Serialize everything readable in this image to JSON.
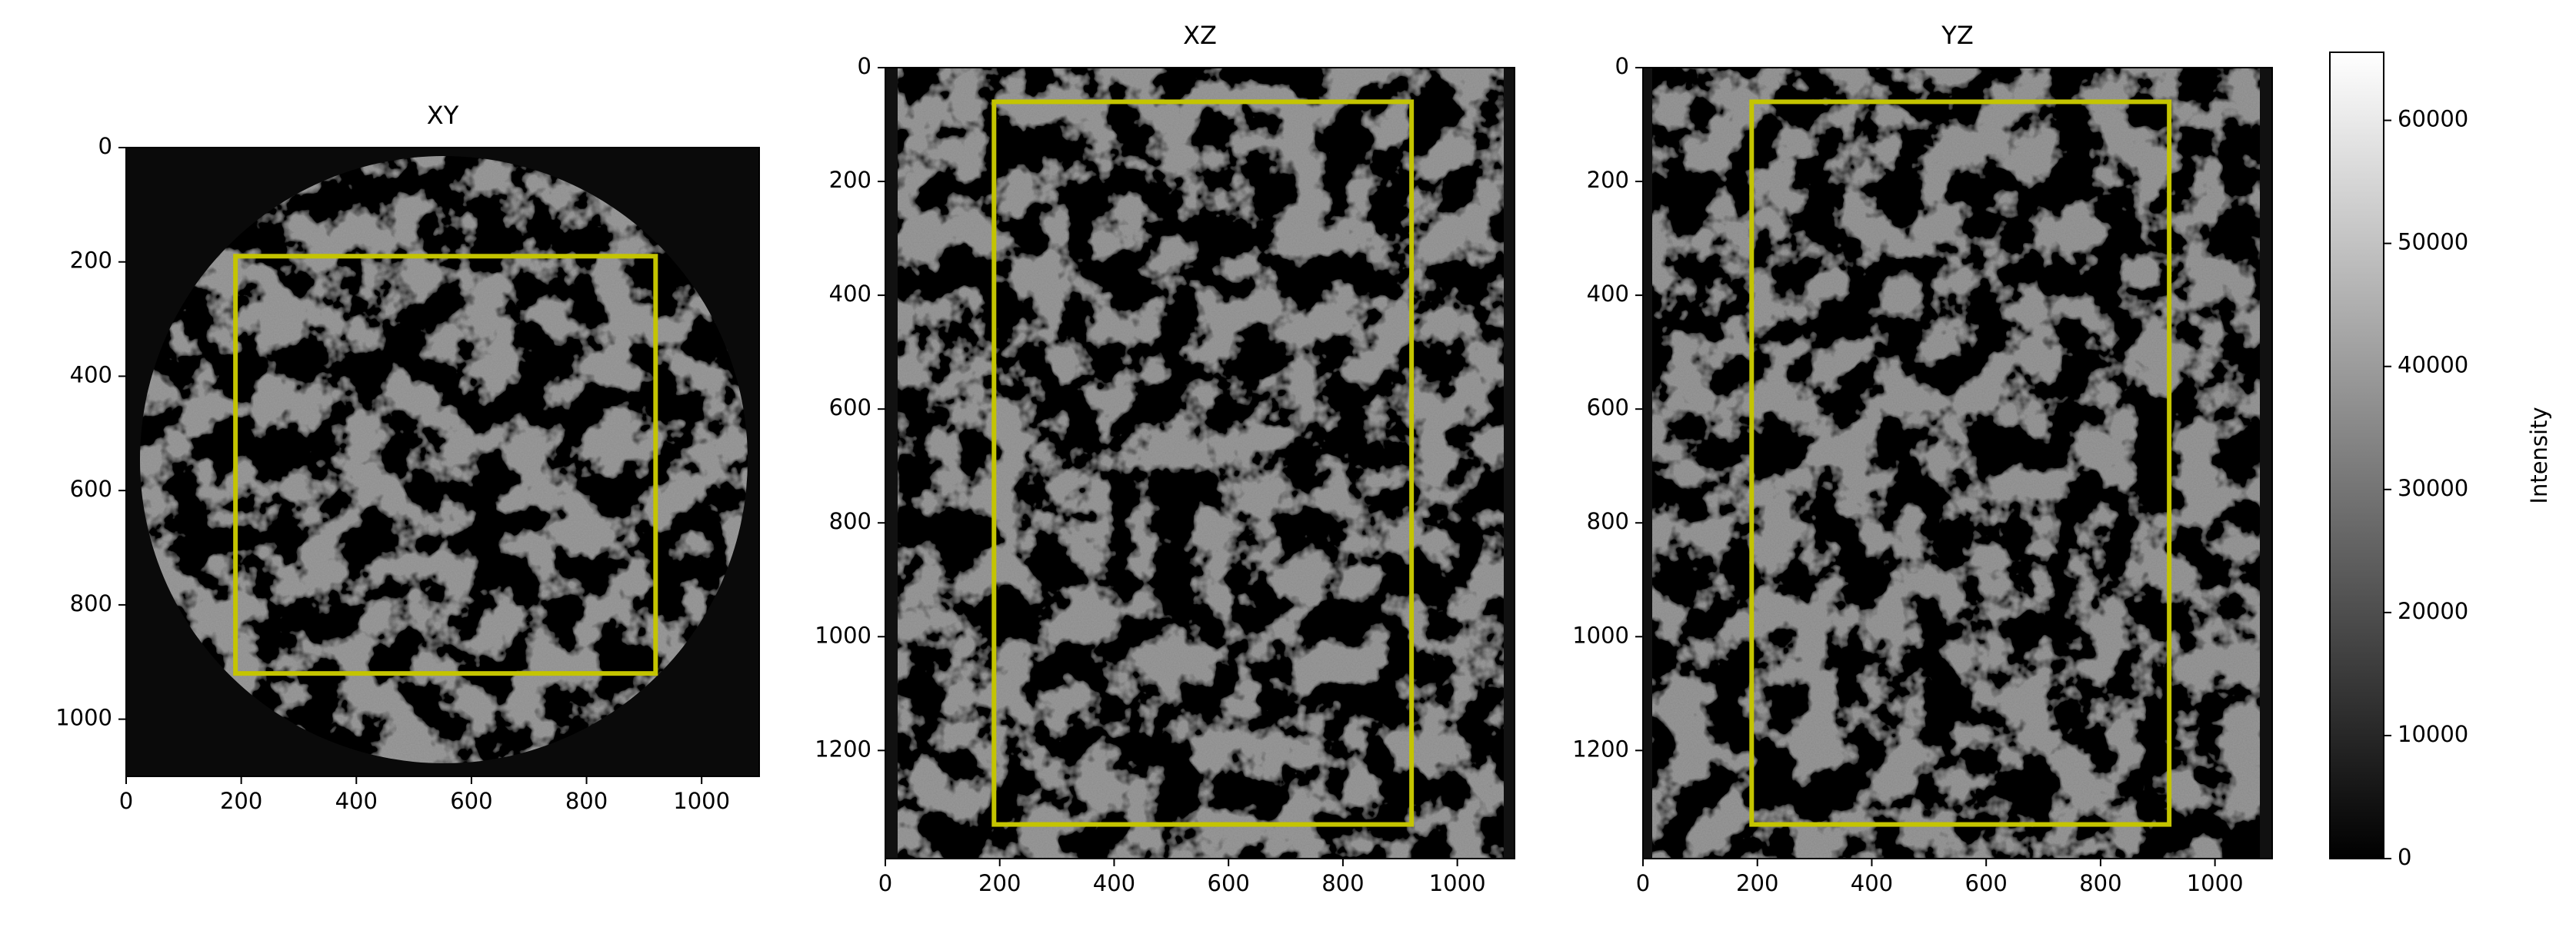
{
  "chart_data": [
    {
      "type": "image",
      "title": "XY",
      "xlim": [
        0,
        1100
      ],
      "ylim": [
        1100,
        0
      ],
      "xticks": [
        0,
        200,
        400,
        600,
        800,
        1000
      ],
      "yticks": [
        0,
        200,
        400,
        600,
        800,
        1000
      ],
      "rectangle": {
        "x": [
          190,
          920
        ],
        "y": [
          190,
          920
        ],
        "color": "#c4c400"
      }
    },
    {
      "type": "image",
      "title": "XZ",
      "xlim": [
        0,
        1100
      ],
      "ylim": [
        1390,
        0
      ],
      "xticks": [
        0,
        200,
        400,
        600,
        800,
        1000
      ],
      "yticks": [
        0,
        200,
        400,
        600,
        800,
        1000,
        1200
      ],
      "rectangle": {
        "x": [
          190,
          920
        ],
        "y": [
          60,
          1330
        ],
        "color": "#c4c400"
      }
    },
    {
      "type": "image",
      "title": "YZ",
      "xlim": [
        0,
        1100
      ],
      "ylim": [
        1390,
        0
      ],
      "xticks": [
        0,
        200,
        400,
        600,
        800,
        1000
      ],
      "yticks": [
        0,
        200,
        400,
        600,
        800,
        1000,
        1200
      ],
      "rectangle": {
        "x": [
          190,
          920
        ],
        "y": [
          60,
          1330
        ],
        "color": "#c4c400"
      }
    },
    {
      "type": "colorbar",
      "label": "Intensity",
      "ylim": [
        0,
        65535
      ],
      "yticks": [
        0,
        10000,
        20000,
        30000,
        40000,
        50000,
        60000
      ],
      "colors": [
        "#000000",
        "#ffffff"
      ]
    }
  ]
}
